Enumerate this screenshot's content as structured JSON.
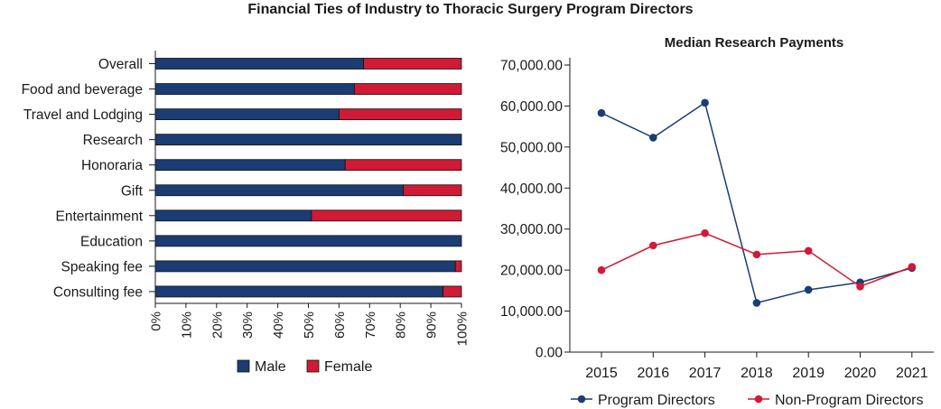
{
  "title": "Financial Ties of Industry to Thoracic Surgery Program Directors",
  "colors": {
    "male": "#1b3d73",
    "female": "#d11a35",
    "program": "#1b3d73",
    "nonprogram": "#d11a35",
    "axis": "#1a1a1a"
  },
  "chart_data": [
    {
      "type": "bar",
      "orientation": "horizontal",
      "stacked": true,
      "percent": true,
      "title": "",
      "categories": [
        "Overall",
        "Food and beverage",
        "Travel and Lodging",
        "Research",
        "Honoraria",
        "Gift",
        "Entertainment",
        "Education",
        "Speaking fee",
        "Consulting fee"
      ],
      "series": [
        {
          "name": "Male",
          "color_key": "male",
          "values": [
            68,
            65,
            60,
            100,
            62,
            81,
            51,
            100,
            98,
            94
          ]
        },
        {
          "name": "Female",
          "color_key": "female",
          "values": [
            32,
            35,
            40,
            0,
            38,
            19,
            49,
            0,
            2,
            6
          ]
        }
      ],
      "xticks": [
        "0%",
        "10%",
        "20%",
        "30%",
        "40%",
        "50%",
        "60%",
        "70%",
        "80%",
        "90%",
        "100%"
      ],
      "xlim": [
        0,
        100
      ],
      "legend": "bottom"
    },
    {
      "type": "line",
      "title": "Median Research Payments",
      "x": [
        2015,
        2016,
        2017,
        2018,
        2019,
        2020,
        2021
      ],
      "xticks": [
        "2015",
        "2016",
        "2017",
        "2018",
        "2019",
        "2020",
        "2021"
      ],
      "ylim": [
        0,
        70000
      ],
      "yticks": [
        "0.00",
        "10,000.00",
        "20,000.00",
        "30,000.00",
        "40,000.00",
        "50,000.00",
        "60,000.00",
        "70,000.00"
      ],
      "series": [
        {
          "name": "Program Directors",
          "color_key": "program",
          "values": [
            58300,
            52300,
            60800,
            12000,
            15200,
            17000,
            20500
          ]
        },
        {
          "name": "Non-Program Directors",
          "color_key": "nonprogram",
          "values": [
            20000,
            26000,
            29000,
            23800,
            24700,
            16000,
            20800
          ]
        }
      ],
      "legend": "bottom"
    }
  ]
}
